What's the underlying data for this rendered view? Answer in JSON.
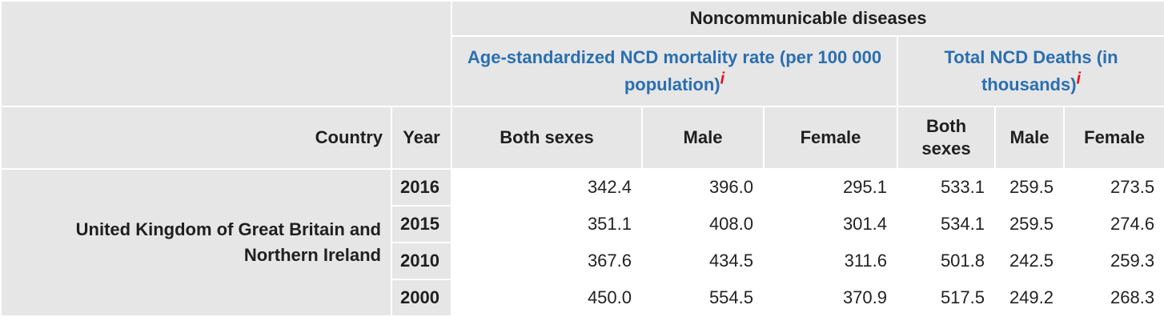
{
  "header": {
    "group_label": "Noncommunicable diseases",
    "subgroup_rate": "Age-standardized NCD mortality rate (per 100 000 population)",
    "subgroup_deaths": "Total NCD Deaths (in thousands)",
    "info_marker": "i",
    "col_country": "Country",
    "col_year": "Year",
    "col_both": "Both sexes",
    "col_male": "Male",
    "col_female": "Female"
  },
  "country": "United Kingdom of Great Britain and Northern Ireland",
  "rows": [
    {
      "year": "2016",
      "rate_both": "342.4",
      "rate_male": "396.0",
      "rate_female": "295.1",
      "deaths_both": "533.1",
      "deaths_male": "259.5",
      "deaths_female": "273.5"
    },
    {
      "year": "2015",
      "rate_both": "351.1",
      "rate_male": "408.0",
      "rate_female": "301.4",
      "deaths_both": "534.1",
      "deaths_male": "259.5",
      "deaths_female": "274.6"
    },
    {
      "year": "2010",
      "rate_both": "367.6",
      "rate_male": "434.5",
      "rate_female": "311.6",
      "deaths_both": "501.8",
      "deaths_male": "242.5",
      "deaths_female": "259.3"
    },
    {
      "year": "2000",
      "rate_both": "450.0",
      "rate_male": "554.5",
      "rate_female": "370.9",
      "deaths_both": "517.5",
      "deaths_male": "249.2",
      "deaths_female": "268.3"
    }
  ]
}
